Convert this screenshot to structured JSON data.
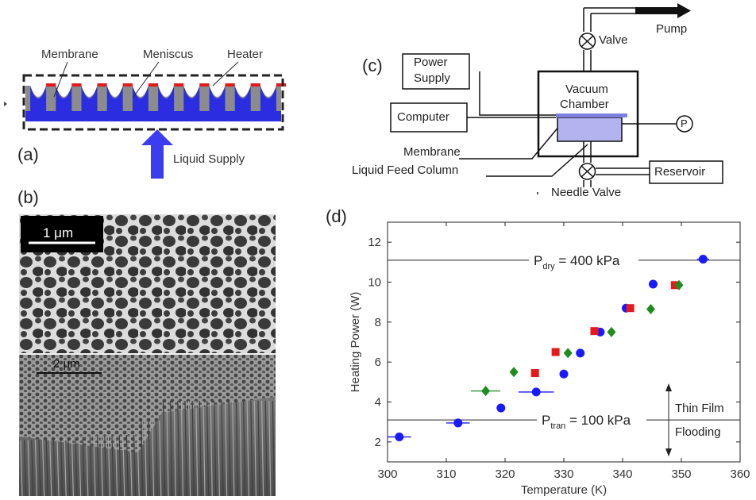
{
  "panel_a": {
    "letter": "(a)",
    "labels": {
      "membrane": "Membrane",
      "meniscus": "Meniscus",
      "heater": "Heater",
      "liquid_supply": "Liquid Supply"
    },
    "colors": {
      "membrane": "#8c8c8c",
      "liquid": "#2a2de0",
      "heater": "#e11b1b",
      "arrow": "#3c3cf0"
    }
  },
  "panel_b": {
    "letter": "(b)",
    "scale_top": "1 μm",
    "scale_bottom": "2 μm"
  },
  "panel_c": {
    "letter": "(c)",
    "labels": {
      "pump": "Pump",
      "valve": "Valve",
      "power_supply_1": "Power",
      "power_supply_2": "Supply",
      "vacuum_1": "Vacuum",
      "vacuum_2": "Chamber",
      "computer": "Computer",
      "membrane": "Membrane",
      "feed_column": "Liquid Feed Column",
      "reservoir": "Reservoir",
      "needle_valve": "Needle Valve",
      "pressure": "P"
    },
    "colors": {
      "chamber_fill": "#b3b3f0",
      "membrane": "#7f7fe0"
    }
  },
  "panel_d": {
    "letter": "(d)"
  },
  "chart_data": {
    "type": "scatter",
    "xlabel": "Temperature (K)",
    "ylabel": "Heating Power (W)",
    "xlim": [
      300,
      360
    ],
    "ylim": [
      1,
      13
    ],
    "x_ticks": [
      300,
      310,
      320,
      330,
      340,
      350,
      360
    ],
    "y_ticks": [
      2,
      4,
      6,
      8,
      10,
      12
    ],
    "grid": false,
    "reference_lines": [
      {
        "y": 11.1,
        "label_main": "P",
        "label_sub": "dry",
        "label_rest": " = 400 kPa"
      },
      {
        "y": 3.1,
        "label_main": "P",
        "label_sub": "tran",
        "label_rest": " = 100 kPa"
      }
    ],
    "annotations": {
      "upper_regime": "Thin Film",
      "lower_regime": "Flooding"
    },
    "series": [
      {
        "marker": "circle",
        "color": "#1a1aff",
        "points": [
          {
            "x": 302,
            "y": 2.25,
            "xerr": 2
          },
          {
            "x": 312,
            "y": 2.95,
            "xerr": 2
          },
          {
            "x": 319.3,
            "y": 3.7,
            "xerr": 0
          },
          {
            "x": 325.3,
            "y": 4.5,
            "xerr": 3
          },
          {
            "x": 330,
            "y": 5.4,
            "xerr": 0
          },
          {
            "x": 332.8,
            "y": 6.45,
            "xerr": 0
          },
          {
            "x": 336.2,
            "y": 7.5,
            "xerr": 0
          },
          {
            "x": 340.6,
            "y": 8.7,
            "xerr": 0
          },
          {
            "x": 345.2,
            "y": 9.9,
            "xerr": 0
          },
          {
            "x": 353.7,
            "y": 11.15,
            "xerr": 1
          }
        ]
      },
      {
        "marker": "square",
        "color": "#e61a1a",
        "points": [
          {
            "x": 325.1,
            "y": 5.45,
            "xerr": 0
          },
          {
            "x": 328.6,
            "y": 6.5,
            "xerr": 0
          },
          {
            "x": 335.2,
            "y": 7.55,
            "xerr": 0
          },
          {
            "x": 341.3,
            "y": 8.7,
            "xerr": 0
          },
          {
            "x": 348.9,
            "y": 9.85,
            "xerr": 0
          }
        ]
      },
      {
        "marker": "diamond",
        "color": "#1e8c1e",
        "points": [
          {
            "x": 316.7,
            "y": 4.55,
            "xerr": 2.5
          },
          {
            "x": 321.5,
            "y": 5.5,
            "xerr": 0
          },
          {
            "x": 330.7,
            "y": 6.45,
            "xerr": 0
          },
          {
            "x": 338.1,
            "y": 7.5,
            "xerr": 0
          },
          {
            "x": 344.8,
            "y": 8.65,
            "xerr": 0
          },
          {
            "x": 349.6,
            "y": 9.85,
            "xerr": 0
          }
        ]
      }
    ]
  }
}
